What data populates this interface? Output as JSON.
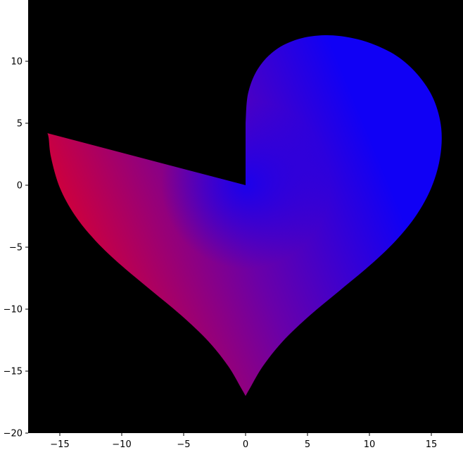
{
  "chart_data": {
    "type": "area",
    "title": "",
    "xlabel": "",
    "ylabel": "",
    "xlim": [
      -17.5,
      17.5
    ],
    "ylim": [
      -20,
      14.3
    ],
    "x_ticks": [
      -15,
      -10,
      -5,
      0,
      5,
      10,
      15
    ],
    "y_ticks": [
      -20,
      -15,
      -10,
      -5,
      0,
      5,
      10
    ],
    "x_tick_labels": [
      "−15",
      "−10",
      "−5",
      "0",
      "5",
      "10",
      "15"
    ],
    "y_tick_labels": [
      "−20",
      "−15",
      "−10",
      "−5",
      "0",
      "5",
      "10"
    ],
    "grid": false,
    "background_color": "#000000",
    "gradient": {
      "start_color": "#d0003a",
      "end_color": "#1000f5",
      "mid_color": "#6a00a8",
      "direction": "left-red to upper-right-blue"
    },
    "shape": {
      "description": "heart curve with left lobe cut off by a wedge from the origin",
      "right_lobe_outline": [
        [
          0,
          5
        ],
        [
          0.2,
          7.4
        ],
        [
          1.0,
          9.4
        ],
        [
          2.4,
          10.9
        ],
        [
          4.3,
          11.8
        ],
        [
          6.4,
          12.1
        ],
        [
          8.5,
          11.9
        ],
        [
          10.5,
          11.3
        ],
        [
          12.4,
          10.3
        ],
        [
          14.0,
          8.8
        ],
        [
          15.2,
          6.9
        ],
        [
          15.8,
          4.6
        ],
        [
          15.7,
          2.2
        ],
        [
          15.0,
          -0.2
        ],
        [
          13.8,
          -2.4
        ],
        [
          12.1,
          -4.5
        ],
        [
          10.0,
          -6.5
        ],
        [
          7.6,
          -8.5
        ],
        [
          5.2,
          -10.5
        ],
        [
          3.0,
          -12.6
        ],
        [
          1.4,
          -14.6
        ],
        [
          0.4,
          -16.3
        ],
        [
          0,
          -17
        ]
      ],
      "left_lobe_outline": [
        [
          0,
          -17
        ],
        [
          -0.4,
          -16.3
        ],
        [
          -1.4,
          -14.6
        ],
        [
          -3.0,
          -12.6
        ],
        [
          -5.2,
          -10.5
        ],
        [
          -7.6,
          -8.5
        ],
        [
          -10.0,
          -6.5
        ],
        [
          -12.1,
          -4.5
        ],
        [
          -13.8,
          -2.4
        ],
        [
          -15.0,
          -0.2
        ],
        [
          -15.7,
          2.2
        ],
        [
          -15.9,
          3.8
        ],
        [
          -16.0,
          4.2
        ]
      ],
      "wedge_apex": [
        0,
        0
      ]
    }
  }
}
